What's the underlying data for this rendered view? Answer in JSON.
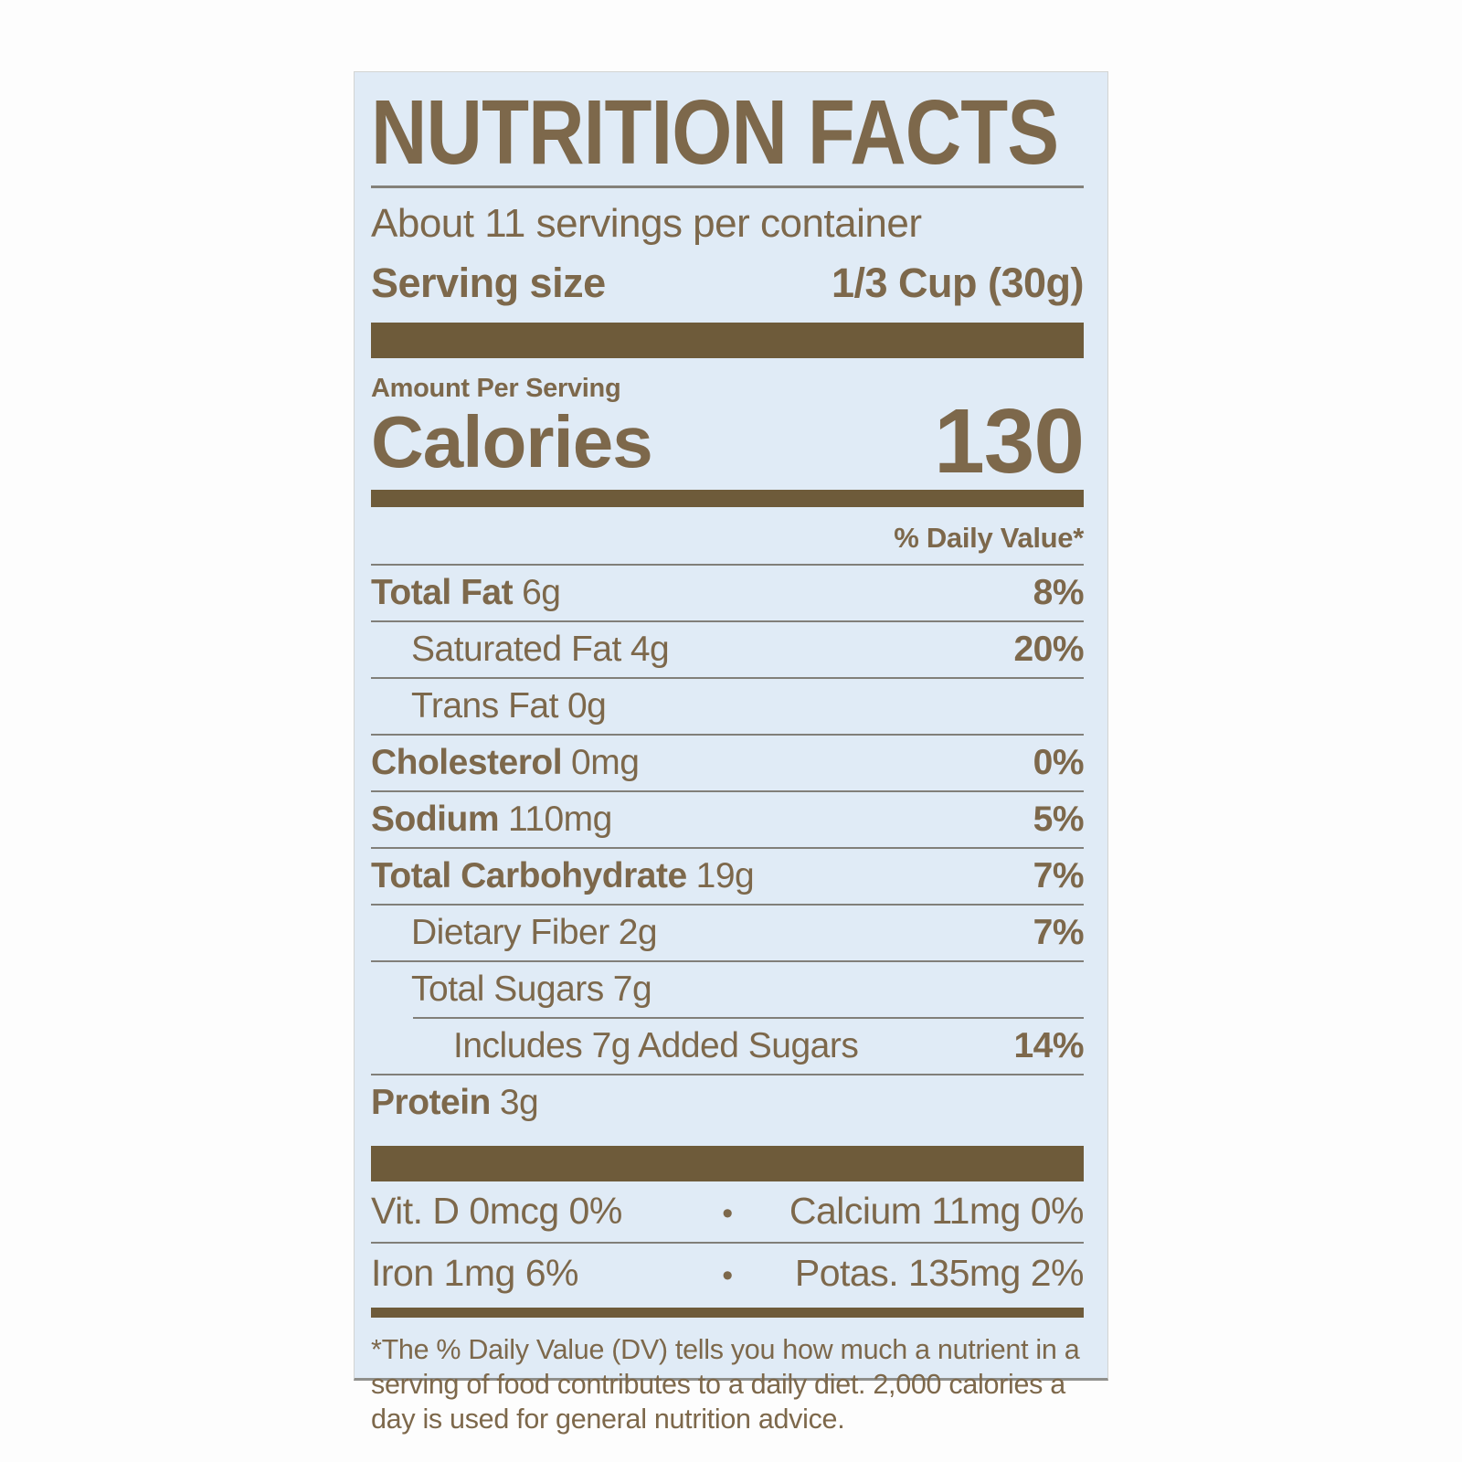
{
  "label": {
    "title": "NUTRITION FACTS",
    "servings_line": "About 11 servings per container",
    "serving_size": {
      "label": "Serving size",
      "value": "1/3 Cup (30g)"
    },
    "amount_per_serving": "Amount Per Serving",
    "calories": {
      "label": "Calories",
      "value": "130"
    },
    "daily_value_header": "% Daily Value*",
    "nutrients": [
      {
        "name": "Total Fat",
        "amount": "6g",
        "dv": "8%"
      },
      {
        "name": "Saturated Fat",
        "amount": "4g",
        "dv": "20%"
      },
      {
        "name": "Trans Fat",
        "amount": "0g",
        "dv": ""
      },
      {
        "name": "Cholesterol",
        "amount": "0mg",
        "dv": "0%"
      },
      {
        "name": "Sodium",
        "amount": "110mg",
        "dv": "5%"
      },
      {
        "name": "Total Carbohydrate",
        "amount": "19g",
        "dv": "7%"
      },
      {
        "name": "Dietary Fiber",
        "amount": "2g",
        "dv": "7%"
      },
      {
        "name": "Total Sugars",
        "amount": "7g",
        "dv": ""
      },
      {
        "name": "Includes 7g Added Sugars",
        "amount": "",
        "dv": "14%"
      },
      {
        "name": "Protein",
        "amount": "3g",
        "dv": ""
      }
    ],
    "micronutrients": {
      "bullet": "•",
      "rows": [
        {
          "left": "Vit. D 0mcg 0%",
          "right": "Calcium 11mg 0%"
        },
        {
          "left": "Iron 1mg 6%",
          "right": "Potas. 135mg 2%"
        }
      ]
    },
    "footnote_lines": [
      "*The % Daily Value (DV) tells you how much a nutrient in a",
      "serving of food contributes to a daily diet. 2,000 calories a",
      "day is used for general nutrition advice."
    ],
    "colors": {
      "label_background": "#e0ebf6",
      "label_text": "#7d684b",
      "separator_bar": "#6e5b3a"
    }
  }
}
